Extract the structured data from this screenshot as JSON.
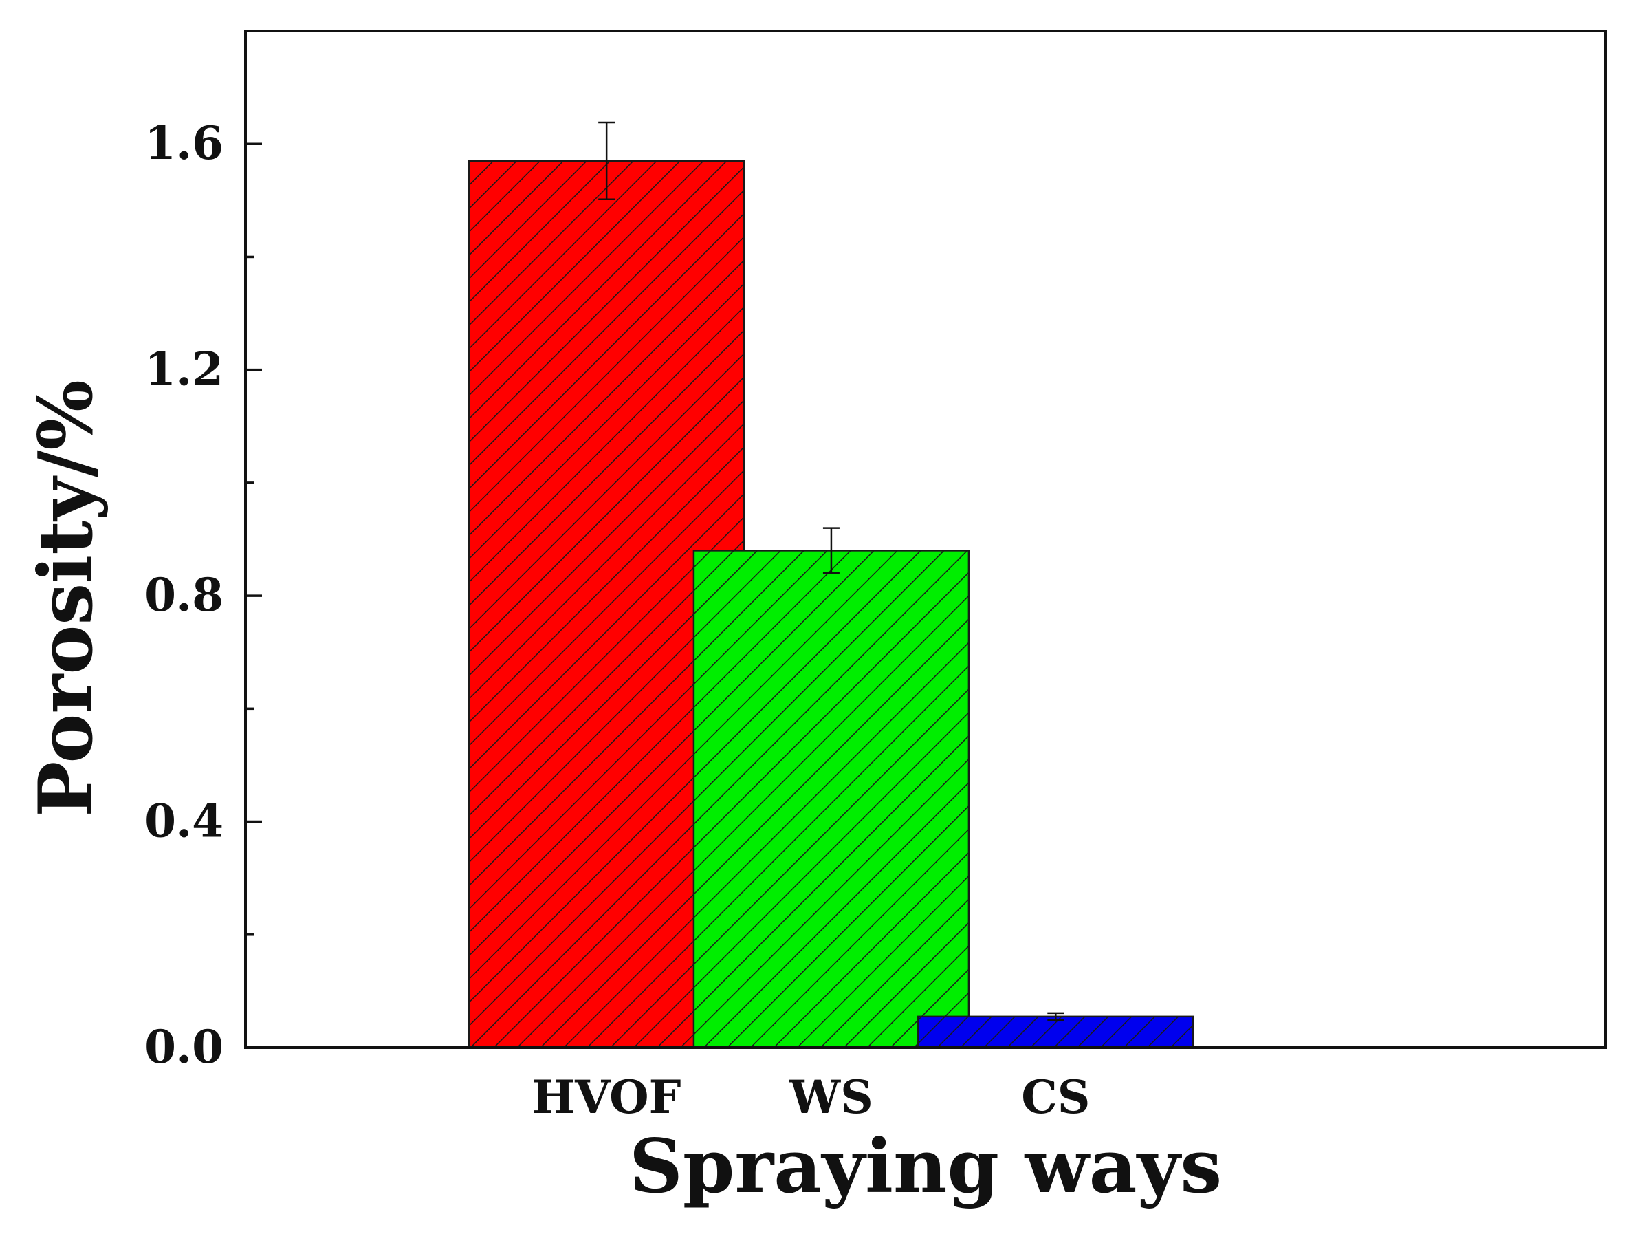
{
  "chart_data": {
    "type": "bar",
    "title": "",
    "xlabel": "Spraying ways",
    "ylabel": "Porosity/%",
    "categories": [
      "HVOF",
      "WS",
      "CS"
    ],
    "values": [
      1.57,
      0.88,
      0.055
    ],
    "errors": [
      0.068,
      0.04,
      0.006
    ],
    "colors": [
      "#ff0000",
      "#00ee00",
      "#0000ee"
    ],
    "hatch": "diagonal",
    "ylim": [
      0,
      1.8
    ],
    "yticks": [
      0.0,
      0.4,
      0.8,
      1.2,
      1.6
    ],
    "ytick_labels": [
      "0.0",
      "0.4",
      "0.8",
      "1.2",
      "1.6"
    ],
    "grid": false,
    "legend": false
  }
}
